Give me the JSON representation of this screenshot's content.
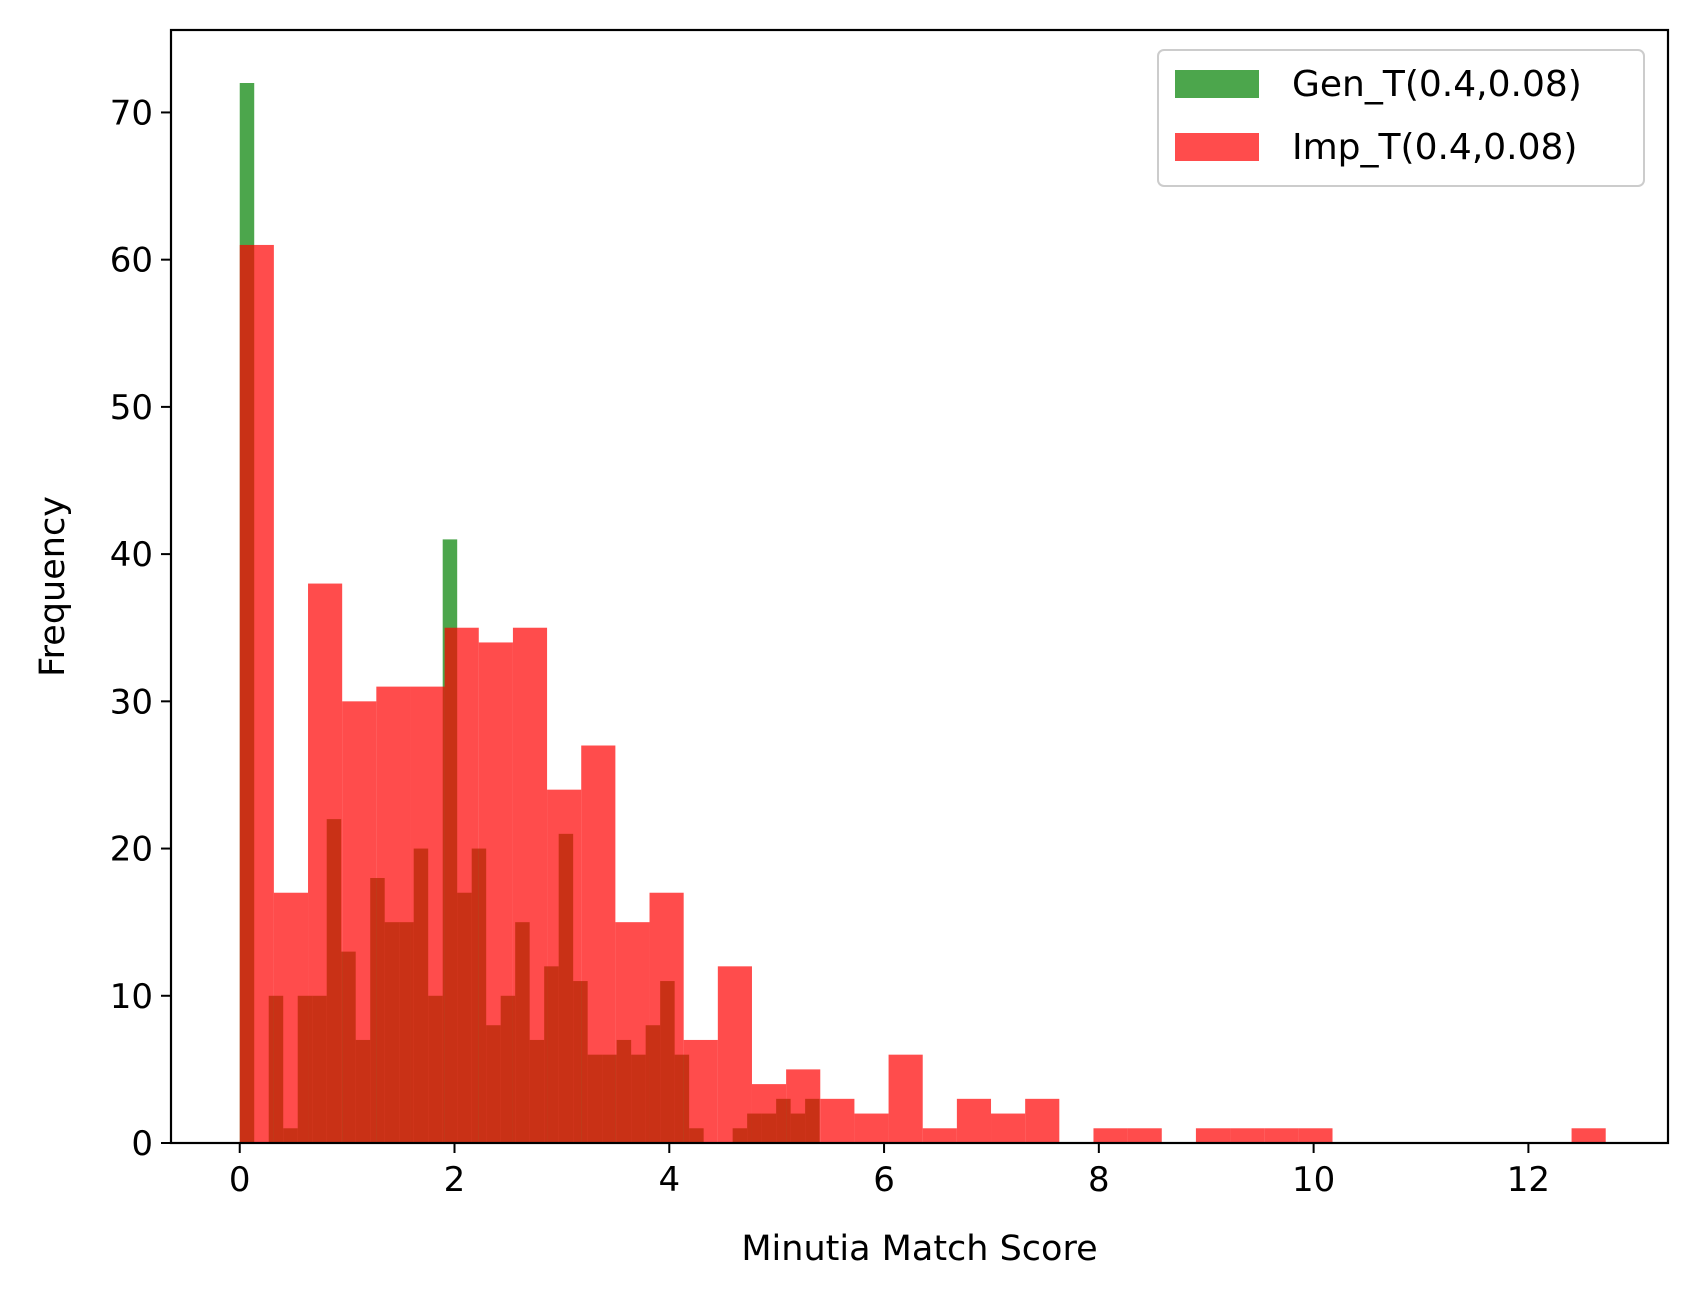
{
  "chart_data": {
    "type": "bar",
    "title": "",
    "xlabel": "Minutia Match Score",
    "ylabel": "Frequency",
    "xlim": [
      -0.64,
      13.3
    ],
    "ylim": [
      0,
      75.6
    ],
    "xticks": [
      0,
      2,
      4,
      6,
      8,
      10,
      12
    ],
    "yticks": [
      0,
      10,
      20,
      30,
      40,
      50,
      60,
      70
    ],
    "grid": false,
    "legend": "top-right",
    "series": [
      {
        "name": "Gen_T(0.4,0.08)",
        "color": "#008000",
        "opacity": 0.7,
        "bins": [
          [
            0.0,
            0.135,
            72
          ],
          [
            0.135,
            0.27,
            0
          ],
          [
            0.27,
            0.405,
            10
          ],
          [
            0.405,
            0.54,
            1
          ],
          [
            0.54,
            0.675,
            10
          ],
          [
            0.675,
            0.81,
            10
          ],
          [
            0.81,
            0.945,
            22
          ],
          [
            0.945,
            1.08,
            13
          ],
          [
            1.08,
            1.215,
            7
          ],
          [
            1.215,
            1.35,
            18
          ],
          [
            1.35,
            1.485,
            15
          ],
          [
            1.485,
            1.62,
            15
          ],
          [
            1.62,
            1.755,
            20
          ],
          [
            1.755,
            1.89,
            10
          ],
          [
            1.89,
            2.025,
            41
          ],
          [
            2.025,
            2.16,
            17
          ],
          [
            2.16,
            2.295,
            20
          ],
          [
            2.295,
            2.43,
            8
          ],
          [
            2.43,
            2.565,
            10
          ],
          [
            2.565,
            2.7,
            15
          ],
          [
            2.7,
            2.835,
            7
          ],
          [
            2.835,
            2.97,
            12
          ],
          [
            2.97,
            3.105,
            21
          ],
          [
            3.105,
            3.24,
            11
          ],
          [
            3.24,
            3.375,
            6
          ],
          [
            3.375,
            3.51,
            6
          ],
          [
            3.51,
            3.645,
            7
          ],
          [
            3.645,
            3.78,
            6
          ],
          [
            3.78,
            3.915,
            8
          ],
          [
            3.915,
            4.05,
            11
          ],
          [
            4.05,
            4.185,
            6
          ],
          [
            4.185,
            4.32,
            1
          ],
          [
            4.32,
            4.455,
            0
          ],
          [
            4.455,
            4.59,
            0
          ],
          [
            4.59,
            4.725,
            1
          ],
          [
            4.725,
            4.86,
            2
          ],
          [
            4.86,
            4.995,
            2
          ],
          [
            4.995,
            5.13,
            3
          ],
          [
            5.13,
            5.265,
            2
          ],
          [
            5.265,
            5.4,
            3
          ]
        ]
      },
      {
        "name": "Imp_T(0.4,0.08)",
        "color": "#ff0000",
        "opacity": 0.7,
        "bins": [
          [
            0.0,
            0.318,
            61
          ],
          [
            0.318,
            0.636,
            17
          ],
          [
            0.636,
            0.954,
            38
          ],
          [
            0.954,
            1.272,
            30
          ],
          [
            1.272,
            1.59,
            31
          ],
          [
            1.59,
            1.908,
            31
          ],
          [
            1.908,
            2.226,
            35
          ],
          [
            2.226,
            2.544,
            34
          ],
          [
            2.544,
            2.862,
            35
          ],
          [
            2.862,
            3.18,
            24
          ],
          [
            3.18,
            3.498,
            27
          ],
          [
            3.498,
            3.816,
            15
          ],
          [
            3.816,
            4.134,
            17
          ],
          [
            4.134,
            4.452,
            7
          ],
          [
            4.452,
            4.77,
            12
          ],
          [
            4.77,
            5.088,
            4
          ],
          [
            5.088,
            5.406,
            5
          ],
          [
            5.406,
            5.724,
            3
          ],
          [
            5.724,
            6.042,
            2
          ],
          [
            6.042,
            6.36,
            6
          ],
          [
            6.36,
            6.678,
            1
          ],
          [
            6.678,
            6.996,
            3
          ],
          [
            6.996,
            7.314,
            2
          ],
          [
            7.314,
            7.632,
            3
          ],
          [
            7.632,
            7.95,
            0
          ],
          [
            7.95,
            8.268,
            1
          ],
          [
            8.268,
            8.586,
            1
          ],
          [
            8.586,
            8.904,
            0
          ],
          [
            8.904,
            9.222,
            1
          ],
          [
            9.222,
            9.54,
            1
          ],
          [
            9.54,
            9.858,
            1
          ],
          [
            9.858,
            10.176,
            1
          ],
          [
            10.176,
            10.494,
            0
          ],
          [
            10.494,
            10.812,
            0
          ],
          [
            10.812,
            11.13,
            0
          ],
          [
            11.13,
            11.448,
            0
          ],
          [
            11.448,
            11.766,
            0
          ],
          [
            11.766,
            12.084,
            0
          ],
          [
            12.084,
            12.402,
            0
          ],
          [
            12.402,
            12.72,
            1
          ]
        ]
      }
    ]
  }
}
